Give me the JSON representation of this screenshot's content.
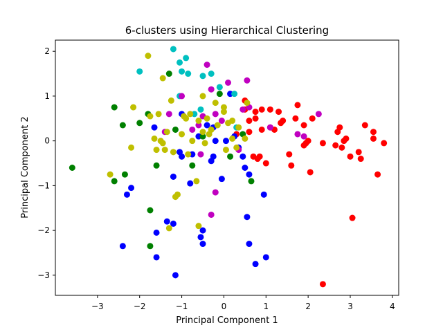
{
  "chart_data": {
    "type": "scatter",
    "title": "6-clusters using Hierarchical Clustering",
    "xlabel": "Principal Component 1",
    "ylabel": "Principal Component 2",
    "xlim": [
      -4.0,
      4.15
    ],
    "ylim": [
      -3.45,
      2.25
    ],
    "xticks": [
      -3,
      -2,
      -1,
      0,
      1,
      2,
      3,
      4
    ],
    "yticks": [
      -3,
      -2,
      -1,
      0,
      1,
      2
    ],
    "grid": false,
    "legend": "none",
    "series": [
      {
        "color": "#ff0000",
        "points": [
          [
            0.5,
            0.9
          ],
          [
            0.5,
            0.7
          ],
          [
            0.6,
            0.45
          ],
          [
            0.75,
            0.65
          ],
          [
            0.75,
            0.5
          ],
          [
            0.9,
            0.7
          ],
          [
            0.9,
            0.25
          ],
          [
            1.1,
            0.7
          ],
          [
            1.1,
            0.3
          ],
          [
            1.2,
            0.25
          ],
          [
            1.3,
            0.65
          ],
          [
            1.35,
            0.4
          ],
          [
            1.4,
            0.45
          ],
          [
            1.55,
            -0.3
          ],
          [
            1.6,
            -0.55
          ],
          [
            1.75,
            0.8
          ],
          [
            1.7,
            0.5
          ],
          [
            1.9,
            0.35
          ],
          [
            1.9,
            -0.1
          ],
          [
            1.95,
            -0.05
          ],
          [
            2.0,
            0.0
          ],
          [
            2.05,
            -0.7
          ],
          [
            2.1,
            0.5
          ],
          [
            2.35,
            -0.05
          ],
          [
            2.35,
            -3.2
          ],
          [
            2.65,
            -0.1
          ],
          [
            2.7,
            0.2
          ],
          [
            2.75,
            0.3
          ],
          [
            2.8,
            -0.15
          ],
          [
            2.85,
            0.0
          ],
          [
            2.9,
            0.05
          ],
          [
            3.0,
            -0.35
          ],
          [
            3.05,
            -1.72
          ],
          [
            3.2,
            -0.25
          ],
          [
            3.25,
            -0.4
          ],
          [
            3.35,
            0.35
          ],
          [
            3.55,
            0.2
          ],
          [
            3.55,
            0.05
          ],
          [
            3.65,
            -0.75
          ],
          [
            3.8,
            -0.05
          ],
          [
            0.8,
            -0.4
          ],
          [
            0.85,
            -0.35
          ],
          [
            1.0,
            -0.5
          ],
          [
            0.7,
            -0.35
          ],
          [
            0.6,
            0.2
          ],
          [
            0.3,
            0.15
          ]
        ]
      },
      {
        "color": "#0000ff",
        "points": [
          [
            -2.4,
            -2.35
          ],
          [
            -2.3,
            -1.2
          ],
          [
            -2.2,
            -1.05
          ],
          [
            -1.65,
            0.3
          ],
          [
            -1.6,
            -2.05
          ],
          [
            -1.6,
            -2.6
          ],
          [
            -1.35,
            -1.8
          ],
          [
            -1.2,
            -0.8
          ],
          [
            -1.2,
            -1.85
          ],
          [
            -1.15,
            -3.0
          ],
          [
            -1.05,
            -0.25
          ],
          [
            -1.0,
            0.6
          ],
          [
            -1.0,
            -0.35
          ],
          [
            -0.8,
            -0.95
          ],
          [
            -0.75,
            -0.3
          ],
          [
            -0.6,
            0.1
          ],
          [
            -0.55,
            -2.15
          ],
          [
            -0.5,
            -2.0
          ],
          [
            -0.5,
            -2.3
          ],
          [
            -0.4,
            0.35
          ],
          [
            -0.3,
            -0.45
          ],
          [
            -0.25,
            0.3
          ],
          [
            -0.25,
            -0.35
          ],
          [
            -0.05,
            -0.85
          ],
          [
            0.05,
            0.0
          ],
          [
            0.15,
            1.05
          ],
          [
            0.25,
            0.1
          ],
          [
            0.35,
            -0.15
          ],
          [
            0.45,
            -0.35
          ],
          [
            0.5,
            -0.6
          ],
          [
            0.55,
            -1.7
          ],
          [
            0.6,
            -0.75
          ],
          [
            0.6,
            -2.3
          ],
          [
            0.75,
            -2.75
          ],
          [
            0.95,
            -1.2
          ],
          [
            1.0,
            -2.6
          ],
          [
            -0.2,
            0.0
          ]
        ]
      },
      {
        "color": "#00c0c0",
        "points": [
          [
            -2.0,
            1.55
          ],
          [
            -1.2,
            2.05
          ],
          [
            -1.05,
            1.75
          ],
          [
            -1.0,
            1.55
          ],
          [
            -0.9,
            1.85
          ],
          [
            -0.85,
            1.5
          ],
          [
            -0.5,
            1.45
          ],
          [
            -0.3,
            1.5
          ],
          [
            -0.1,
            1.2
          ],
          [
            0.25,
            1.05
          ],
          [
            -0.55,
            0.7
          ],
          [
            -0.7,
            0.6
          ],
          [
            0.3,
            0.3
          ],
          [
            -1.05,
            1.0
          ]
        ]
      },
      {
        "color": "#008000",
        "points": [
          [
            -3.6,
            -0.6
          ],
          [
            -2.6,
            0.75
          ],
          [
            -2.4,
            0.35
          ],
          [
            -2.6,
            -0.9
          ],
          [
            -2.35,
            -0.75
          ],
          [
            -2.0,
            0.4
          ],
          [
            -1.8,
            0.6
          ],
          [
            -1.75,
            -1.55
          ],
          [
            -1.75,
            -2.35
          ],
          [
            -1.6,
            -0.55
          ],
          [
            -1.3,
            1.5
          ],
          [
            -1.15,
            0.25
          ],
          [
            -0.75,
            -0.55
          ],
          [
            -0.5,
            0.1
          ],
          [
            0.15,
            -0.35
          ],
          [
            0.65,
            -0.9
          ],
          [
            -0.1,
            1.05
          ],
          [
            0.45,
            0.15
          ]
        ]
      },
      {
        "color": "#c000c0",
        "points": [
          [
            -1.4,
            0.2
          ],
          [
            -1.3,
            0.6
          ],
          [
            -1.0,
            1.0
          ],
          [
            -0.75,
            0.25
          ],
          [
            -0.6,
            0.35
          ],
          [
            -0.55,
            -0.3
          ],
          [
            -0.4,
            1.7
          ],
          [
            -0.3,
            1.15
          ],
          [
            -0.3,
            -1.65
          ],
          [
            -0.2,
            0.6
          ],
          [
            -0.2,
            -1.15
          ],
          [
            -0.05,
            0.45
          ],
          [
            0.1,
            1.3
          ],
          [
            0.35,
            -0.2
          ],
          [
            0.45,
            0.7
          ],
          [
            0.55,
            1.35
          ],
          [
            0.6,
            0.75
          ],
          [
            1.1,
            0.3
          ],
          [
            1.75,
            0.15
          ],
          [
            1.9,
            0.1
          ],
          [
            2.25,
            0.6
          ],
          [
            -0.5,
            0.55
          ]
        ]
      },
      {
        "color": "#bfbf00",
        "points": [
          [
            -2.7,
            -0.75
          ],
          [
            -2.15,
            0.75
          ],
          [
            -2.2,
            -0.15
          ],
          [
            -1.8,
            1.9
          ],
          [
            -1.75,
            0.55
          ],
          [
            -1.65,
            0.05
          ],
          [
            -1.6,
            -0.2
          ],
          [
            -1.55,
            0.6
          ],
          [
            -1.5,
            0.0
          ],
          [
            -1.45,
            -0.05
          ],
          [
            -1.4,
            -0.2
          ],
          [
            -1.45,
            1.4
          ],
          [
            -1.35,
            0.2
          ],
          [
            -1.3,
            -1.95
          ],
          [
            -1.25,
            0.9
          ],
          [
            -1.2,
            -0.25
          ],
          [
            -1.15,
            -1.25
          ],
          [
            -1.1,
            -1.2
          ],
          [
            -1.0,
            0.15
          ],
          [
            -0.95,
            0.55
          ],
          [
            -0.9,
            0.5
          ],
          [
            -0.85,
            -0.3
          ],
          [
            -0.8,
            0.6
          ],
          [
            -0.75,
            0.0
          ],
          [
            -0.65,
            -0.9
          ],
          [
            -0.6,
            -1.9
          ],
          [
            -0.5,
            0.2
          ],
          [
            -0.45,
            -0.05
          ],
          [
            -0.4,
            0.5
          ],
          [
            -0.35,
            0.15
          ],
          [
            -0.3,
            0.25
          ],
          [
            -0.2,
            0.85
          ],
          [
            -0.15,
            0.35
          ],
          [
            0.0,
            0.75
          ],
          [
            0.0,
            0.65
          ],
          [
            0.05,
            -0.2
          ],
          [
            0.1,
            0.4
          ],
          [
            0.2,
            0.45
          ],
          [
            0.2,
            0.05
          ],
          [
            0.3,
            -0.15
          ],
          [
            0.35,
            0.3
          ],
          [
            0.5,
            0.05
          ],
          [
            0.55,
            0.85
          ],
          [
            -0.5,
            1.0
          ],
          [
            -0.6,
            0.45
          ]
        ]
      }
    ]
  }
}
